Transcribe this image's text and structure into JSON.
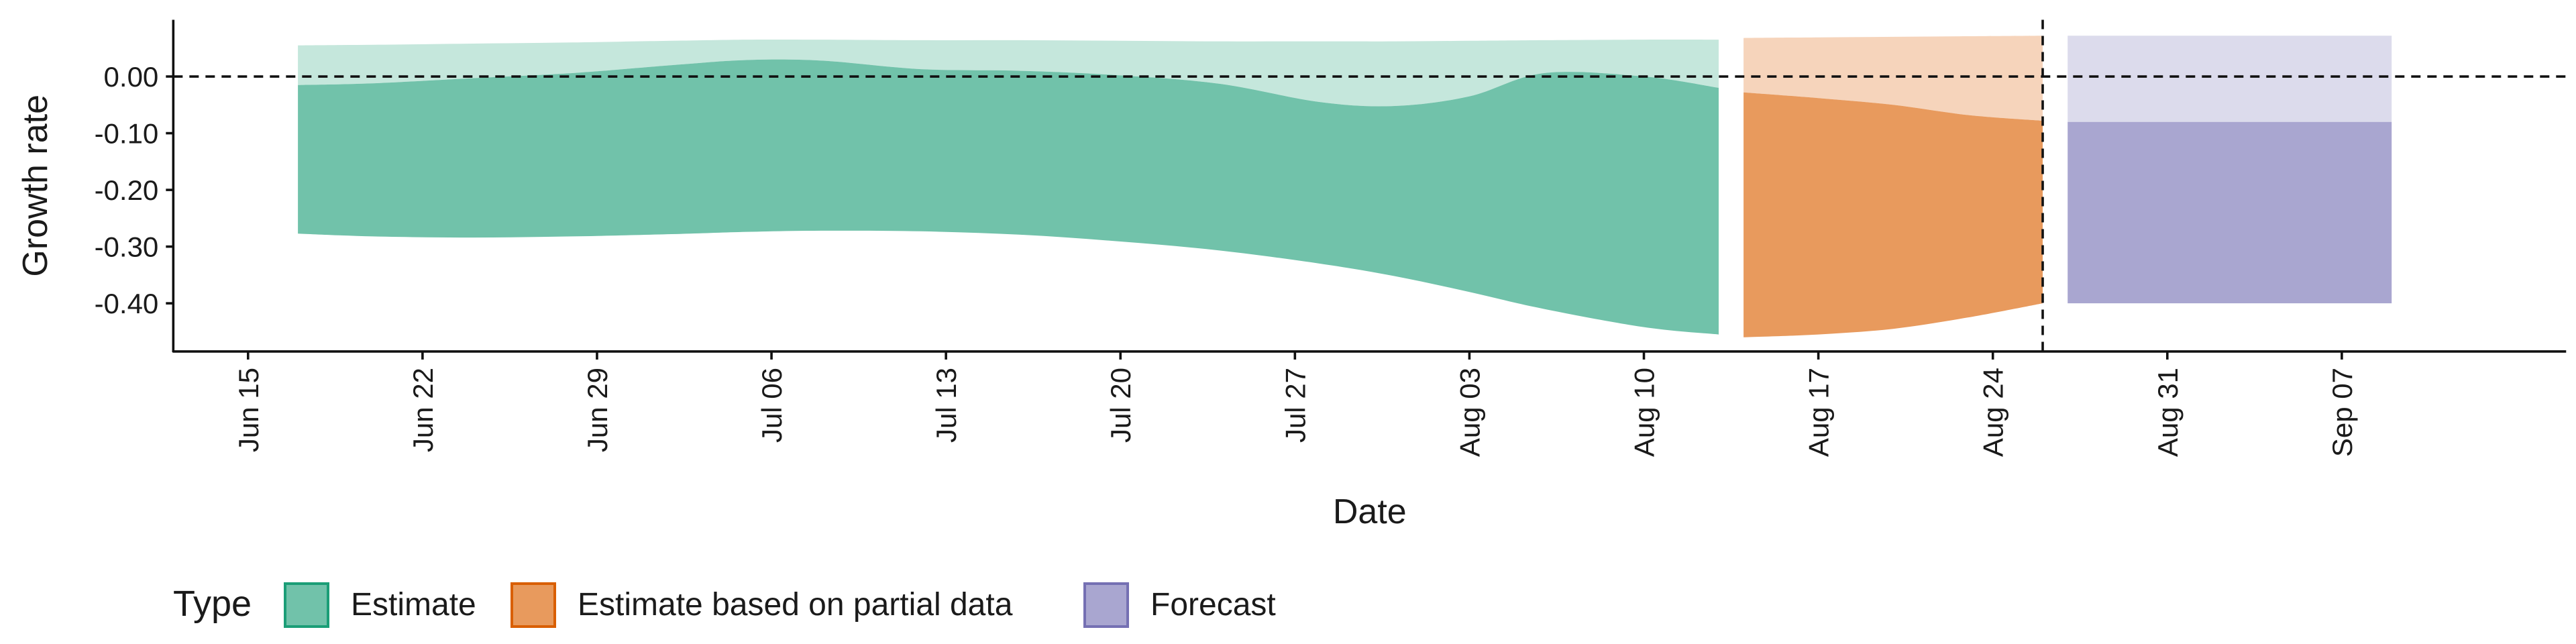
{
  "chart_data": {
    "type": "area",
    "xlabel": "Date",
    "ylabel": "Growth rate",
    "x_range": [
      "2020-06-12",
      "2020-09-16"
    ],
    "ylim": [
      -0.485,
      0.1
    ],
    "y_ticks": [
      {
        "value": 0.0,
        "label": "0.00"
      },
      {
        "value": -0.1,
        "label": "-0.10"
      },
      {
        "value": -0.2,
        "label": "-0.20"
      },
      {
        "value": -0.3,
        "label": "-0.30"
      },
      {
        "value": -0.4,
        "label": "-0.40"
      }
    ],
    "x_ticks": [
      {
        "date": "2020-06-15",
        "label": "Jun 15"
      },
      {
        "date": "2020-06-22",
        "label": "Jun 22"
      },
      {
        "date": "2020-06-29",
        "label": "Jun 29"
      },
      {
        "date": "2020-07-06",
        "label": "Jul 06"
      },
      {
        "date": "2020-07-13",
        "label": "Jul 13"
      },
      {
        "date": "2020-07-20",
        "label": "Jul 20"
      },
      {
        "date": "2020-07-27",
        "label": "Jul 27"
      },
      {
        "date": "2020-08-03",
        "label": "Aug 03"
      },
      {
        "date": "2020-08-10",
        "label": "Aug 10"
      },
      {
        "date": "2020-08-17",
        "label": "Aug 17"
      },
      {
        "date": "2020-08-24",
        "label": "Aug 24"
      },
      {
        "date": "2020-08-31",
        "label": "Aug 31"
      },
      {
        "date": "2020-09-07",
        "label": "Sep 07"
      }
    ],
    "hline": 0,
    "vline": "2020-08-26",
    "grid": false,
    "legend": {
      "title": "Type",
      "position": "bottom-left",
      "entries": [
        {
          "label": "Estimate",
          "fill": "#71c2aa",
          "stroke": "#1b9e77"
        },
        {
          "label": "Estimate based on partial data",
          "fill": "#e89a5d",
          "stroke": "#d95f02"
        },
        {
          "label": "Forecast",
          "fill": "#a9a6d0",
          "stroke": "#7570b3"
        }
      ]
    },
    "series": [
      {
        "type_label": "Estimate",
        "inner_color": "#71c2aa",
        "outer_color": "#c5e7dc",
        "points": [
          {
            "x": "2020-06-17",
            "lo": -0.277,
            "mid": -0.015,
            "hi": 0.055
          },
          {
            "x": "2020-06-20",
            "lo": -0.282,
            "mid": -0.012,
            "hi": 0.056
          },
          {
            "x": "2020-06-24",
            "lo": -0.284,
            "mid": -0.003,
            "hi": 0.058
          },
          {
            "x": "2020-06-28",
            "lo": -0.282,
            "mid": 0.006,
            "hi": 0.06
          },
          {
            "x": "2020-07-02",
            "lo": -0.278,
            "mid": 0.02,
            "hi": 0.063
          },
          {
            "x": "2020-07-05",
            "lo": -0.274,
            "mid": 0.029,
            "hi": 0.065
          },
          {
            "x": "2020-07-08",
            "lo": -0.272,
            "mid": 0.028,
            "hi": 0.065
          },
          {
            "x": "2020-07-12",
            "lo": -0.273,
            "mid": 0.013,
            "hi": 0.064
          },
          {
            "x": "2020-07-16",
            "lo": -0.279,
            "mid": 0.01,
            "hi": 0.064
          },
          {
            "x": "2020-07-20",
            "lo": -0.291,
            "mid": 0.002,
            "hi": 0.063
          },
          {
            "x": "2020-07-24",
            "lo": -0.307,
            "mid": -0.013,
            "hi": 0.062
          },
          {
            "x": "2020-07-28",
            "lo": -0.33,
            "mid": -0.045,
            "hi": 0.062
          },
          {
            "x": "2020-07-31",
            "lo": -0.352,
            "mid": -0.052,
            "hi": 0.062
          },
          {
            "x": "2020-08-03",
            "lo": -0.38,
            "mid": -0.035,
            "hi": 0.063
          },
          {
            "x": "2020-08-06",
            "lo": -0.41,
            "mid": 0.006,
            "hi": 0.064
          },
          {
            "x": "2020-08-10",
            "lo": -0.442,
            "mid": 0.0,
            "hi": 0.065
          },
          {
            "x": "2020-08-13",
            "lo": -0.455,
            "mid": -0.02,
            "hi": 0.065
          }
        ]
      },
      {
        "type_label": "Estimate based on partial data",
        "inner_color": "#e89a5d",
        "outer_color": "#f6d4bb",
        "points": [
          {
            "x": "2020-08-14",
            "lo": -0.46,
            "mid": -0.028,
            "hi": 0.068
          },
          {
            "x": "2020-08-17",
            "lo": -0.455,
            "mid": -0.038,
            "hi": 0.069
          },
          {
            "x": "2020-08-20",
            "lo": -0.445,
            "mid": -0.05,
            "hi": 0.07
          },
          {
            "x": "2020-08-23",
            "lo": -0.425,
            "mid": -0.068,
            "hi": 0.071
          },
          {
            "x": "2020-08-26",
            "lo": -0.4,
            "mid": -0.078,
            "hi": 0.072
          }
        ]
      },
      {
        "type_label": "Forecast",
        "inner_color": "#a9a6d0",
        "outer_color": "#dcdbec",
        "points": [
          {
            "x": "2020-08-27",
            "lo": -0.4,
            "mid": -0.08,
            "hi": 0.072
          },
          {
            "x": "2020-09-09",
            "lo": -0.4,
            "mid": -0.08,
            "hi": 0.072
          }
        ]
      }
    ]
  }
}
